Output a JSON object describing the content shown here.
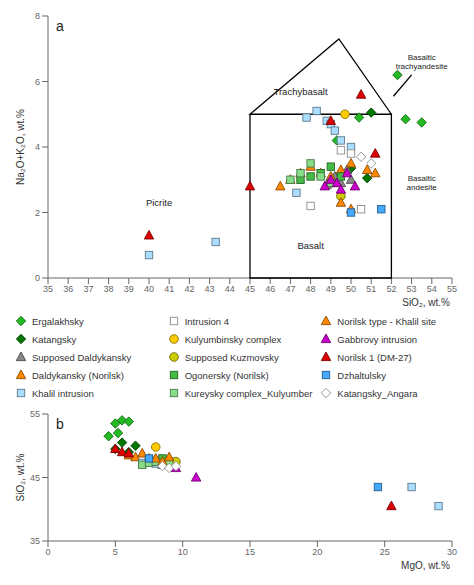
{
  "chart_data": [
    {
      "type": "scatter",
      "title": "a",
      "xlabel": "SiO₂, wt.%",
      "ylabel": "Na₂O+K₂O, wt.%",
      "xlim": [
        35,
        55
      ],
      "ylim": [
        0,
        8
      ],
      "xticks": [
        35,
        36,
        37,
        38,
        39,
        40,
        41,
        42,
        43,
        44,
        45,
        46,
        47,
        48,
        49,
        50,
        51,
        52,
        53,
        54,
        55
      ],
      "yticks": [
        0,
        2,
        4,
        6,
        8
      ],
      "legend": "bottom",
      "series": [
        {
          "name": "Ergalakhsky",
          "marker": "diamond",
          "color": "#22BB22",
          "x": [
            49.3,
            50.4,
            52.7,
            53.5,
            52.3
          ],
          "values": [
            4.2,
            4.9,
            4.85,
            4.75,
            6.2
          ]
        },
        {
          "name": "Katangsky",
          "marker": "diamond",
          "color": "#007700",
          "x": [
            49.5,
            50.0,
            50.8,
            51.0
          ],
          "values": [
            3.15,
            3.35,
            3.05,
            5.05
          ]
        },
        {
          "name": "Supposed Daldykansky",
          "marker": "triangle",
          "color": "#888888",
          "x": [
            48.8,
            49.2,
            49.5,
            49.8,
            50.0
          ],
          "values": [
            2.85,
            3.1,
            2.9,
            3.3,
            3.0
          ]
        },
        {
          "name": "Daldykansky (Norilsk)",
          "marker": "triangle",
          "color": "#FF8800",
          "x": [
            47.5,
            48.0,
            48.5,
            49.0,
            49.5,
            50.0,
            46.5,
            47.0
          ],
          "values": [
            3.2,
            3.4,
            3.2,
            3.1,
            3.3,
            3.5,
            2.8,
            3.0
          ]
        },
        {
          "name": "Khalil intrusion",
          "marker": "square",
          "color": "#AADDFF",
          "x": [
            40.0,
            43.3,
            47.3,
            47.8,
            48.3,
            48.8,
            49.0,
            49.2,
            49.5,
            50.0
          ],
          "values": [
            0.7,
            1.1,
            2.6,
            4.9,
            5.1,
            4.8,
            4.7,
            4.5,
            4.2,
            4.0
          ]
        },
        {
          "name": "Intrusion 4",
          "marker": "square",
          "color": "#FFFFFF",
          "x": [
            48.0,
            49.5,
            50.0,
            50.5
          ],
          "values": [
            2.2,
            3.9,
            3.8,
            2.1
          ]
        },
        {
          "name": "Kulyumbinsky complex",
          "marker": "circle",
          "color": "#FFCC00",
          "x": [
            49.7
          ],
          "values": [
            5.0
          ]
        },
        {
          "name": "Supposed Kuzmovsky",
          "marker": "circle",
          "color": "#CCCC00",
          "x": [
            49.5
          ],
          "values": [
            2.5
          ]
        },
        {
          "name": "Ogonersky (Norilsk)",
          "marker": "square",
          "color": "#44BB44",
          "x": [
            47.5,
            48.0,
            48.5,
            49.0,
            49.5
          ],
          "values": [
            3.0,
            3.1,
            3.2,
            3.4,
            3.1
          ]
        },
        {
          "name": "Kureysky complex_Kulyumber",
          "marker": "square",
          "color": "#88DD88",
          "x": [
            47.0,
            47.5,
            48.0,
            48.5,
            49.0
          ],
          "values": [
            3.0,
            3.2,
            3.5,
            3.1,
            2.9
          ]
        },
        {
          "name": "Norilsk type - Khalil site",
          "marker": "triangle",
          "color": "#FF8800",
          "x": [
            49.5,
            50.0,
            50.8,
            51.2
          ],
          "values": [
            2.3,
            2.1,
            3.3,
            3.2
          ]
        },
        {
          "name": "Gabbrovy intrusion",
          "marker": "triangle",
          "color": "#CC00CC",
          "x": [
            48.7,
            49.0,
            49.3,
            49.5,
            49.8,
            50.2
          ],
          "values": [
            2.8,
            3.0,
            2.9,
            2.7,
            3.2,
            2.8
          ]
        },
        {
          "name": "Norilsk 1 (DM-27)",
          "marker": "triangle",
          "color": "#DD0000",
          "x": [
            40.0,
            45.0,
            49.0,
            50.5,
            51.2
          ],
          "values": [
            1.3,
            2.8,
            4.8,
            5.6,
            3.8
          ]
        },
        {
          "name": "Dzhaltulsky",
          "marker": "square",
          "color": "#44AAFF",
          "x": [
            50.0,
            51.5
          ],
          "values": [
            2.0,
            2.1
          ]
        },
        {
          "name": "Katangsky_Angara",
          "marker": "diamond",
          "color": "#FFFFFF",
          "x": [
            50.5,
            51.0
          ],
          "values": [
            3.7,
            3.5
          ]
        },
        {
          "type": "line",
          "color": "#000000",
          "x": [
            45,
            45,
            52,
            52,
            45,
            49.4,
            52
          ],
          "values": [
            5.0,
            0,
            0,
            5.0,
            5.0,
            7.3,
            5.0
          ]
        },
        {
          "type": "line",
          "color": "#000000",
          "x": [
            52.1,
            53.0
          ],
          "values": [
            5.55,
            6.2
          ]
        }
      ],
      "annotations": [
        {
          "text": "Picrite",
          "x": 40.5,
          "y": 2.3
        },
        {
          "text": "Trachybasalt",
          "x": 47.5,
          "y": 5.7
        },
        {
          "text": "Basalt",
          "x": 48.0,
          "y": 1.0
        },
        {
          "text": "Basaltic\ntrachyandesite",
          "x": 53.5,
          "y": 6.6
        },
        {
          "text": "Basaltic\nandesite",
          "x": 53.5,
          "y": 2.9
        }
      ]
    },
    {
      "type": "scatter",
      "title": "b",
      "xlabel": "MgO, wt.%",
      "ylabel": "SiO₂, wt.%",
      "xlim": [
        0,
        30
      ],
      "ylim": [
        35,
        55
      ],
      "xticks": [
        0,
        5,
        10,
        15,
        20,
        25,
        30
      ],
      "yticks": [
        35,
        45,
        55
      ],
      "series": [
        {
          "name": "Ergalakhsky",
          "marker": "diamond",
          "color": "#22BB22",
          "x": [
            4.5,
            5.0,
            5.5,
            6.0,
            5.2
          ],
          "values": [
            51.5,
            53.5,
            54.0,
            53.8,
            52.0
          ]
        },
        {
          "name": "Katangsky",
          "marker": "diamond",
          "color": "#007700",
          "x": [
            5.0,
            5.5,
            6.0,
            6.5
          ],
          "values": [
            49.5,
            50.5,
            49.0,
            50.0
          ]
        },
        {
          "name": "Supposed Daldykansky",
          "marker": "triangle",
          "color": "#888888",
          "x": [
            7.5,
            8.0,
            8.5,
            9.0
          ],
          "values": [
            47.5,
            47.8,
            47.2,
            47.5
          ]
        },
        {
          "name": "Daldykansky (Norilsk)",
          "marker": "triangle",
          "color": "#FF8800",
          "x": [
            6.0,
            6.5,
            7.0,
            7.5,
            8.0,
            8.5
          ],
          "values": [
            48.5,
            48.2,
            48.8,
            48.0,
            47.5,
            47.0
          ]
        },
        {
          "name": "Khalil intrusion",
          "marker": "square",
          "color": "#AADDFF",
          "x": [
            7.0,
            7.5,
            8.0,
            8.5,
            27.0,
            29.0
          ],
          "values": [
            47.3,
            47.5,
            47.2,
            47.0,
            43.5,
            40.5
          ]
        },
        {
          "name": "Intrusion 4",
          "marker": "square",
          "color": "#FFFFFF",
          "x": [
            8.5,
            9.0
          ],
          "values": [
            47.5,
            47.5
          ]
        },
        {
          "name": "Kulyumbinsky complex",
          "marker": "circle",
          "color": "#FFCC00",
          "x": [
            8.0
          ],
          "values": [
            49.8
          ]
        },
        {
          "name": "Supposed Kuzmovsky",
          "marker": "circle",
          "color": "#CCCC00",
          "x": [
            9.5
          ],
          "values": [
            47.5
          ]
        },
        {
          "name": "Ogonersky (Norilsk)",
          "marker": "square",
          "color": "#44BB44",
          "x": [
            7.5,
            8.0,
            8.5
          ],
          "values": [
            47.8,
            47.5,
            48.0
          ]
        },
        {
          "name": "Kureysky complex_Kulyumber",
          "marker": "square",
          "color": "#88DD88",
          "x": [
            7.0,
            7.5,
            8.0,
            9.0
          ],
          "values": [
            47.0,
            47.3,
            47.5,
            47.2
          ]
        },
        {
          "name": "Norilsk type - Khalil site",
          "marker": "triangle",
          "color": "#FF8800",
          "x": [
            8.0,
            8.5,
            9.0
          ],
          "values": [
            48.0,
            47.5,
            48.2
          ]
        },
        {
          "name": "Gabbrovy intrusion",
          "marker": "triangle",
          "color": "#CC00CC",
          "x": [
            9.5,
            11.0
          ],
          "values": [
            46.5,
            45.0
          ]
        },
        {
          "name": "Norilsk 1 (DM-27)",
          "marker": "triangle",
          "color": "#DD0000",
          "x": [
            5.0,
            5.5,
            6.0,
            25.5
          ],
          "values": [
            49.5,
            49.0,
            48.8,
            40.5
          ]
        },
        {
          "name": "Dzhaltulsky",
          "marker": "square",
          "color": "#44AAFF",
          "x": [
            7.5,
            24.5
          ],
          "values": [
            48.0,
            43.5
          ]
        },
        {
          "name": "Katangsky_Angara",
          "marker": "diamond",
          "color": "#FFFFFF",
          "x": [
            8.5,
            9.0,
            9.5
          ],
          "values": [
            46.8,
            46.5,
            46.8
          ]
        }
      ]
    }
  ]
}
